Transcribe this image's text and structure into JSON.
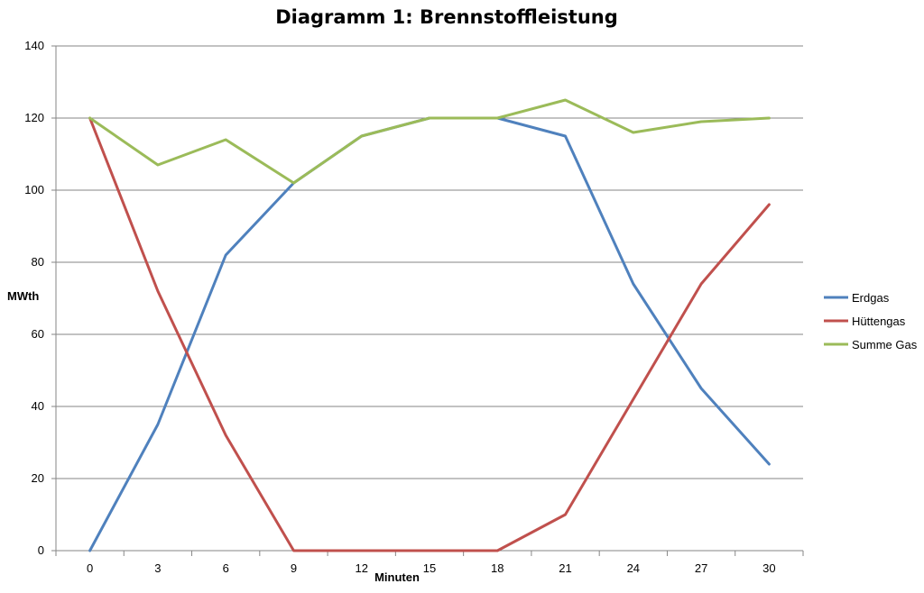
{
  "chart_data": {
    "type": "line",
    "title": "Diagramm 1: Brennstoffleistung",
    "xlabel": "Minuten",
    "ylabel": "MWth",
    "categories": [
      "0",
      "3",
      "6",
      "9",
      "12",
      "15",
      "18",
      "21",
      "24",
      "27",
      "30"
    ],
    "x": [
      0,
      3,
      6,
      9,
      12,
      15,
      18,
      21,
      24,
      27,
      30
    ],
    "ylim": [
      0,
      140
    ],
    "yticks": [
      "0",
      "20",
      "40",
      "60",
      "80",
      "100",
      "120",
      "140"
    ],
    "grid": "horizontal",
    "legend_position": "right",
    "series": [
      {
        "name": "Erdgas",
        "color": "#4F81BD",
        "values": [
          0,
          35,
          82,
          102,
          115,
          120,
          120,
          115,
          74,
          45,
          24
        ]
      },
      {
        "name": "Hüttengas",
        "color": "#C0504D",
        "values": [
          120,
          72,
          32,
          0,
          0,
          0,
          0,
          10,
          42,
          74,
          96
        ]
      },
      {
        "name": "Summe Gas",
        "color": "#9BBB59",
        "values": [
          120,
          107,
          114,
          102,
          115,
          120,
          120,
          125,
          116,
          119,
          120
        ]
      }
    ]
  }
}
